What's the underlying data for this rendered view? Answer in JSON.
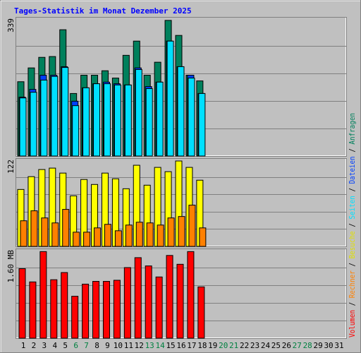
{
  "chart_data": [
    {
      "type": "bar",
      "title": "Tages-Statistik im Monat Dezember 2025",
      "ylim": [
        0,
        339
      ],
      "yticks": [
        339
      ],
      "grid": true,
      "series": [
        {
          "name": "Anfragen",
          "color": "#00805c",
          "values": [
            183,
            217,
            243,
            245,
            311,
            154,
            199,
            199,
            210,
            192,
            248,
            283,
            199,
            231,
            334,
            297,
            199,
            185,
            null,
            null,
            null,
            null,
            null,
            null,
            null,
            null,
            null,
            null,
            null,
            null,
            null
          ]
        },
        {
          "name": "Dateien",
          "color": "#0040ff",
          "values": [
            145,
            164,
            199,
            199,
            220,
            135,
            168,
            178,
            182,
            178,
            175,
            217,
            171,
            182,
            283,
            220,
            199,
            154,
            null,
            null,
            null,
            null,
            null,
            null,
            null,
            null,
            null,
            null,
            null,
            null,
            null
          ]
        },
        {
          "name": "Seiten",
          "color": "#00e0ff",
          "values": [
            143,
            157,
            187,
            196,
            218,
            124,
            168,
            178,
            178,
            175,
            175,
            213,
            166,
            182,
            283,
            220,
            192,
            154,
            null,
            null,
            null,
            null,
            null,
            null,
            null,
            null,
            null,
            null,
            null,
            null,
            null
          ]
        }
      ]
    },
    {
      "type": "bar",
      "ylim": [
        0,
        122
      ],
      "yticks": [
        122
      ],
      "grid": true,
      "series": [
        {
          "name": "Besuche",
          "color": "#ffff00",
          "values": [
            80,
            98,
            108,
            110,
            103,
            71,
            94,
            87,
            103,
            95,
            81,
            114,
            86,
            111,
            105,
            120,
            111,
            93,
            null,
            null,
            null,
            null,
            null,
            null,
            null,
            null,
            null,
            null,
            null,
            null,
            null
          ]
        },
        {
          "name": "Rechner",
          "color": "#ff8000",
          "values": [
            36,
            50,
            40,
            33,
            52,
            20,
            20,
            26,
            31,
            22,
            30,
            34,
            33,
            30,
            40,
            42,
            58,
            26,
            null,
            null,
            null,
            null,
            null,
            null,
            null,
            null,
            null,
            null,
            null,
            null,
            null
          ]
        }
      ]
    },
    {
      "type": "bar",
      "ylim": [
        0,
        1.6
      ],
      "yticks": [
        {
          "value": 1.6,
          "label": "1.60 MB"
        }
      ],
      "grid": true,
      "categories": [
        "1",
        "2",
        "3",
        "4",
        "5",
        "6",
        "7",
        "8",
        "9",
        "10",
        "11",
        "12",
        "13",
        "14",
        "15",
        "16",
        "17",
        "18",
        "19",
        "20",
        "21",
        "22",
        "23",
        "24",
        "25",
        "26",
        "27",
        "28",
        "29",
        "30",
        "31"
      ],
      "category_colors": [
        "#000000",
        "#000000",
        "#000000",
        "#000000",
        "#000000",
        "#008040",
        "#008040",
        "#000000",
        "#000000",
        "#000000",
        "#000000",
        "#000000",
        "#008040",
        "#008040",
        "#000000",
        "#000000",
        "#000000",
        "#000000",
        "#000000",
        "#008040",
        "#008040",
        "#000000",
        "#000000",
        "#000000",
        "#000000",
        "#000000",
        "#008040",
        "#008040",
        "#000000",
        "#000000",
        "#000000"
      ],
      "series": [
        {
          "name": "Volumen",
          "color": "#ff0000",
          "values": [
            1.26,
            1.02,
            1.57,
            1.06,
            1.19,
            0.76,
            0.98,
            1.03,
            1.03,
            1.05,
            1.28,
            1.46,
            1.31,
            1.11,
            1.5,
            1.34,
            1.57,
            0.93,
            null,
            null,
            null,
            null,
            null,
            null,
            null,
            null,
            null,
            null,
            null,
            null,
            null
          ]
        }
      ],
      "legend_separator": " / "
    }
  ]
}
